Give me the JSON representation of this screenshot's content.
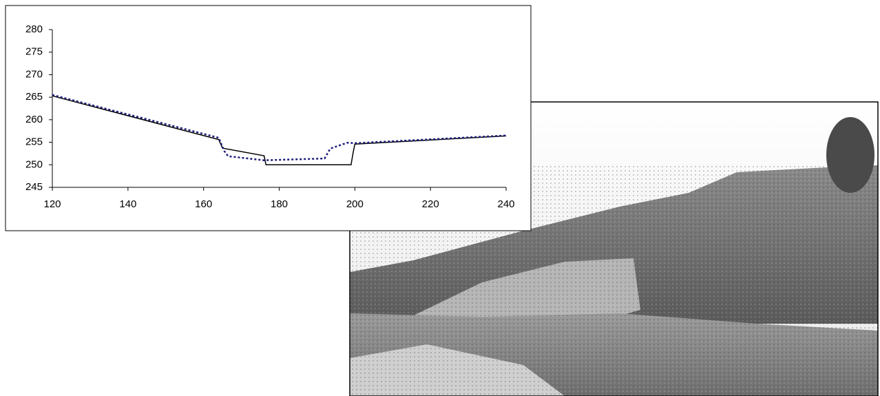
{
  "chart_data": {
    "type": "line",
    "series": [
      {
        "color": "#000000",
        "style": "solid",
        "x": [
          120,
          164,
          165,
          176,
          176.5,
          199,
          199.5,
          200,
          240
        ],
        "values": [
          265.3,
          255.6,
          253.7,
          252,
          250,
          250,
          252.5,
          254.6,
          256.4
        ]
      },
      {
        "color": "#1a1a7a",
        "style": "dotted",
        "x": [
          120,
          164,
          165.5,
          166.5,
          176,
          192,
          193.5,
          198,
          200,
          240
        ],
        "values": [
          265.5,
          256,
          253,
          251.9,
          251,
          251.4,
          253.6,
          254.9,
          254.8,
          256.5
        ]
      }
    ],
    "xlim": [
      120,
      240
    ],
    "xticks": [
      120,
      140,
      160,
      180,
      200,
      220,
      240
    ],
    "ylim": [
      245,
      280
    ],
    "yticks": [
      245,
      250,
      255,
      260,
      265,
      270,
      275,
      280
    ],
    "grid": false
  }
}
